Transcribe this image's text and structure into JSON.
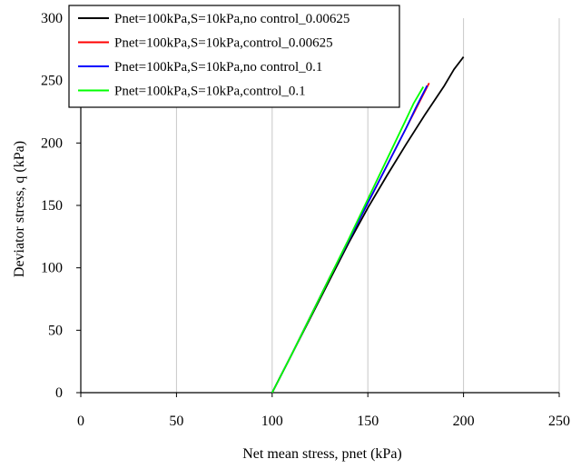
{
  "chart_data": {
    "type": "line",
    "title": "",
    "xlabel": "Net mean stress, pnet  (kPa)",
    "ylabel": "Deviator stress, q (kPa)",
    "xlim": [
      0,
      250
    ],
    "ylim": [
      0,
      300
    ],
    "x_ticks": [
      0,
      50,
      100,
      150,
      200,
      250
    ],
    "y_ticks": [
      0,
      50,
      100,
      150,
      200,
      250,
      300
    ],
    "x_tick_labels": [
      "0",
      "50",
      "100",
      "150",
      "200",
      "250"
    ],
    "y_tick_labels": [
      "0",
      "50",
      "100",
      "150",
      "200",
      "250",
      "300"
    ],
    "grid": "vertical",
    "legend": "top-left",
    "series": [
      {
        "name": "Pnet=100kPa,S=10kPa,no control_0.00625",
        "color": "#000000",
        "x": [
          100,
          110,
          120,
          130,
          140,
          150,
          160,
          170,
          180,
          190,
          195,
          200
        ],
        "y": [
          0,
          30,
          60,
          90,
          120,
          148,
          174,
          199,
          223,
          246,
          259,
          269
        ]
      },
      {
        "name": "Pnet=100kPa,S=10kPa,control_0.00625",
        "color": "#ff0000",
        "x": [
          100,
          110,
          120,
          130,
          140,
          150,
          160,
          170,
          175,
          182
        ],
        "y": [
          0,
          30,
          61,
          92,
          122,
          152,
          182,
          212,
          227,
          248
        ]
      },
      {
        "name": "Pnet=100kPa,S=10kPa,no control_0.1",
        "color": "#0000ff",
        "x": [
          100,
          110,
          120,
          130,
          140,
          150,
          160,
          170,
          175,
          181
        ],
        "y": [
          0,
          30,
          61,
          92,
          122,
          152,
          182,
          212,
          228,
          246
        ]
      },
      {
        "name": "Pnet=100kPa,S=10kPa,control_0.1",
        "color": "#00ff00",
        "x": [
          100,
          110,
          120,
          130,
          140,
          150,
          160,
          170,
          174,
          179
        ],
        "y": [
          0,
          30,
          61,
          92,
          123,
          155,
          187,
          219,
          232,
          245
        ]
      }
    ]
  }
}
